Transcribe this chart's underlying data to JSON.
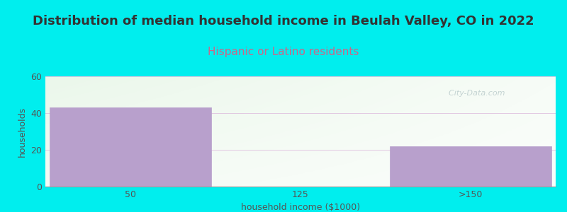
{
  "title": "Distribution of median household income in Beulah Valley, CO in 2022",
  "subtitle": "Hispanic or Latino residents",
  "categories": [
    "50",
    "125",
    ">150"
  ],
  "values": [
    43,
    0,
    22
  ],
  "bar_color": "#b8a0cc",
  "background_color": "#00eeee",
  "ylabel": "households",
  "xlabel": "household income ($1000)",
  "ylim": [
    0,
    60
  ],
  "yticks": [
    0,
    20,
    40,
    60
  ],
  "title_fontsize": 13,
  "subtitle_fontsize": 11,
  "title_color": "#333333",
  "subtitle_color": "#cc6688",
  "axis_label_fontsize": 9,
  "tick_fontsize": 9,
  "watermark": "  City-Data.com"
}
